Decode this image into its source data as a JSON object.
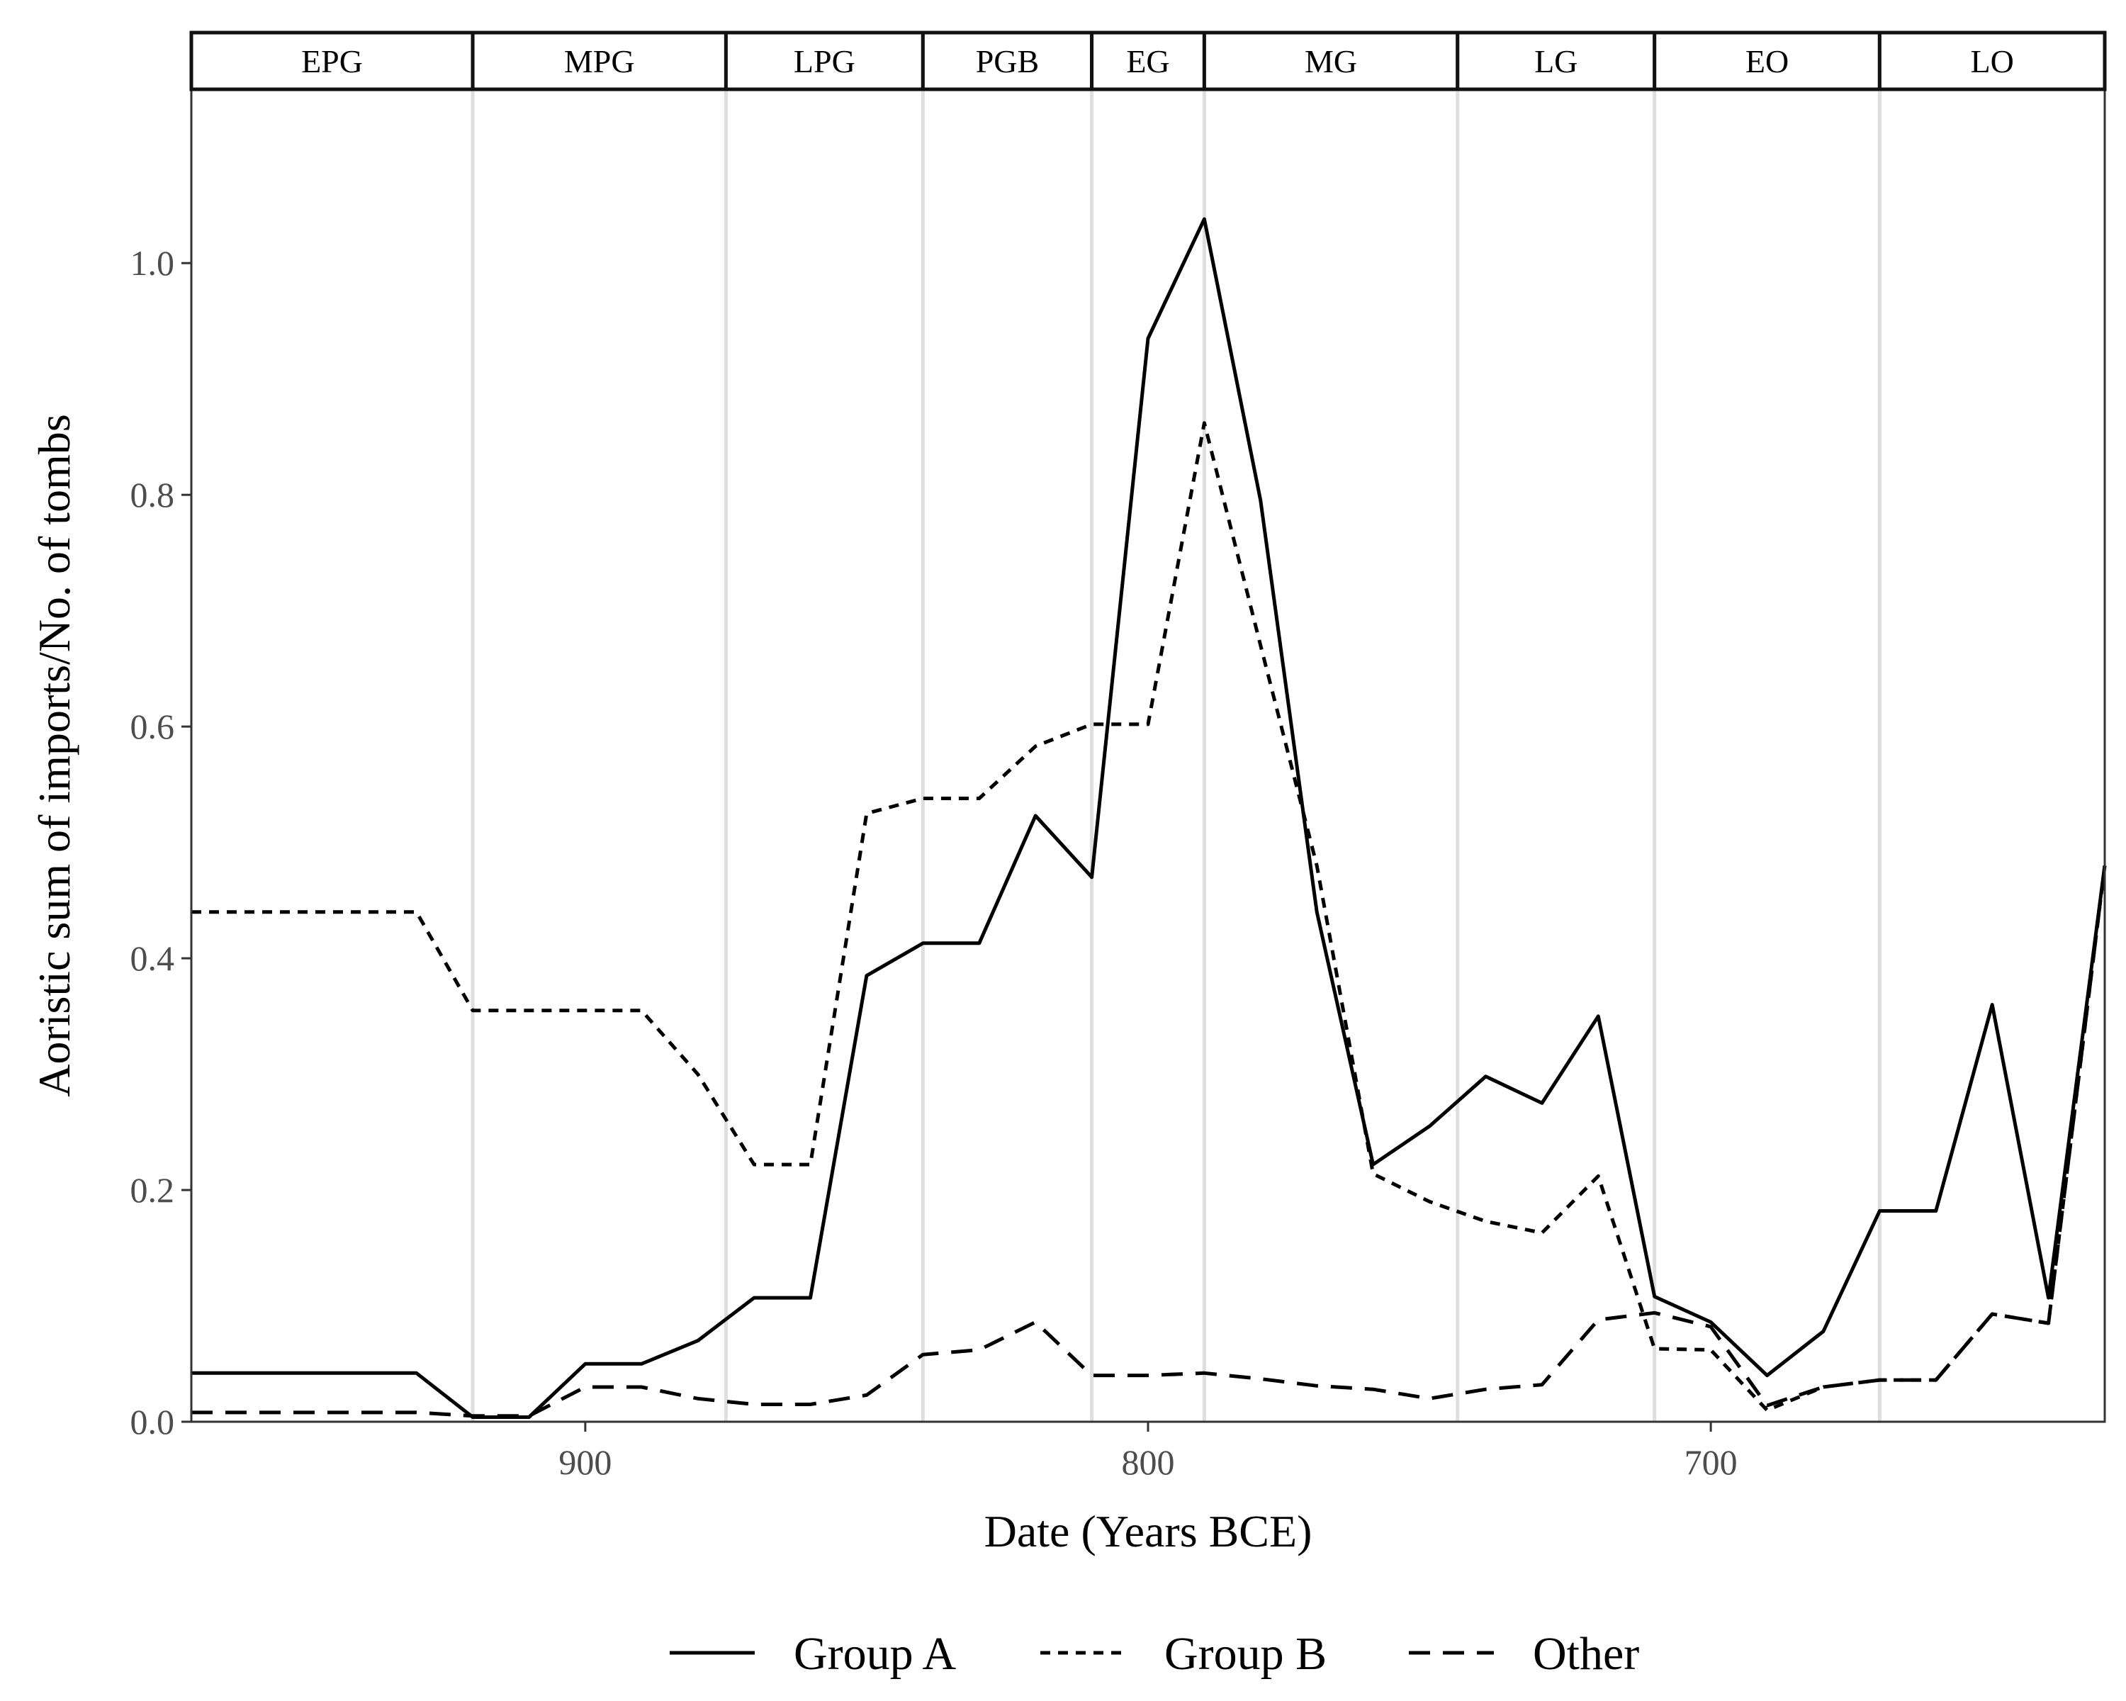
{
  "chart_data": {
    "type": "line",
    "title": "",
    "xlabel": "Date (Years BCE)",
    "ylabel": "Aoristic sum of imports/No. of tombs",
    "x_reversed": true,
    "xlim": [
      970,
      630
    ],
    "ylim": [
      0,
      1.15
    ],
    "x_ticks": [
      900,
      800,
      700
    ],
    "y_ticks": [
      0.0,
      0.2,
      0.4,
      0.6,
      0.8,
      1.0
    ],
    "y_tick_labels": [
      "0.0",
      "0.2",
      "0.4",
      "0.6",
      "0.8",
      "1.0"
    ],
    "grid": false,
    "legend_position": "bottom",
    "periods": [
      {
        "label": "EPG",
        "start": 970,
        "end": 920
      },
      {
        "label": "MPG",
        "start": 920,
        "end": 875
      },
      {
        "label": "LPG",
        "start": 875,
        "end": 840
      },
      {
        "label": "PGB",
        "start": 840,
        "end": 810
      },
      {
        "label": "EG",
        "start": 810,
        "end": 790
      },
      {
        "label": "MG",
        "start": 790,
        "end": 745
      },
      {
        "label": "LG",
        "start": 745,
        "end": 710
      },
      {
        "label": "EO",
        "start": 710,
        "end": 670
      },
      {
        "label": "LO",
        "start": 670,
        "end": 630
      }
    ],
    "x": [
      970,
      960,
      950,
      940,
      930,
      920,
      910,
      900,
      890,
      880,
      870,
      860,
      850,
      840,
      830,
      820,
      810,
      800,
      790,
      780,
      770,
      760,
      750,
      740,
      730,
      720,
      710,
      700,
      690,
      680,
      670,
      660,
      650,
      640,
      630
    ],
    "series": [
      {
        "name": "Group A",
        "dash": "solid",
        "values": [
          0.042,
          0.042,
          0.042,
          0.042,
          0.042,
          0.004,
          0.004,
          0.05,
          0.05,
          0.07,
          0.107,
          0.107,
          0.385,
          0.413,
          0.413,
          0.523,
          0.47,
          0.935,
          1.038,
          0.795,
          0.44,
          0.222,
          0.255,
          0.298,
          0.275,
          0.35,
          0.108,
          0.086,
          0.04,
          0.078,
          0.182,
          0.182,
          0.36,
          0.107,
          0.48
        ]
      },
      {
        "name": "Group B",
        "dash": "dotted",
        "values": [
          0.44,
          0.44,
          0.44,
          0.44,
          0.44,
          0.355,
          0.355,
          0.355,
          0.355,
          0.3,
          0.222,
          0.222,
          0.525,
          0.538,
          0.538,
          0.583,
          0.602,
          0.602,
          0.862,
          0.67,
          0.48,
          0.214,
          0.19,
          0.173,
          0.163,
          0.212,
          0.063,
          0.062,
          0.01,
          0.03,
          0.036,
          0.036,
          0.093,
          0.085,
          0.48
        ]
      },
      {
        "name": "Other",
        "dash": "dashed",
        "values": [
          0.008,
          0.008,
          0.008,
          0.008,
          0.008,
          0.005,
          0.005,
          0.03,
          0.03,
          0.02,
          0.015,
          0.015,
          0.023,
          0.058,
          0.062,
          0.086,
          0.04,
          0.04,
          0.042,
          0.037,
          0.031,
          0.028,
          0.02,
          0.028,
          0.032,
          0.088,
          0.094,
          0.082,
          0.014,
          0.03,
          0.036,
          0.036,
          0.093,
          0.085,
          0.48
        ]
      }
    ]
  }
}
